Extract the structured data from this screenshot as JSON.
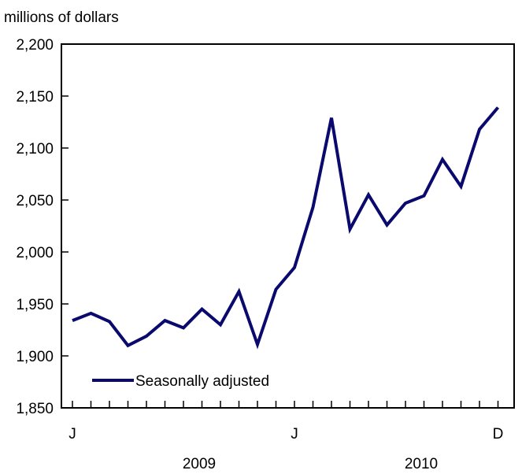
{
  "chart_data": {
    "type": "line",
    "title": "",
    "ylabel": "millions of dollars",
    "xlabel": "",
    "ylim": [
      1850,
      2200
    ],
    "y_ticks": [
      "1,850",
      "1,900",
      "1,950",
      "2,000",
      "2,050",
      "2,100",
      "2,150",
      "2,200"
    ],
    "y_tick_values": [
      1850,
      1900,
      1950,
      2000,
      2050,
      2100,
      2150,
      2200
    ],
    "x": [
      "2009-01",
      "2009-02",
      "2009-03",
      "2009-04",
      "2009-05",
      "2009-06",
      "2009-07",
      "2009-08",
      "2009-09",
      "2009-10",
      "2009-11",
      "2009-12",
      "2010-01",
      "2010-02",
      "2010-03",
      "2010-04",
      "2010-05",
      "2010-06",
      "2010-07",
      "2010-08",
      "2010-09",
      "2010-10",
      "2010-11",
      "2010-12"
    ],
    "x_tick_labels": [
      {
        "label": "J",
        "x": "2009-01"
      },
      {
        "label": "J",
        "x": "2010-01"
      },
      {
        "label": "D",
        "x": "2010-12"
      }
    ],
    "year_labels": [
      {
        "label": "2009",
        "x": "2009-07"
      },
      {
        "label": "2010",
        "x": "2010-07"
      }
    ],
    "series": [
      {
        "name": "Seasonally adjusted",
        "color": "#0a0a6e",
        "values": [
          1934,
          1941,
          1933,
          1910,
          1919,
          1934,
          1927,
          1945,
          1930,
          1962,
          1911,
          1964,
          1985,
          2043,
          2129,
          2022,
          2055,
          2026,
          2047,
          2054,
          2089,
          2063,
          2118,
          2139
        ]
      }
    ],
    "legend": {
      "placement": "bottom-left"
    },
    "grid": false
  }
}
